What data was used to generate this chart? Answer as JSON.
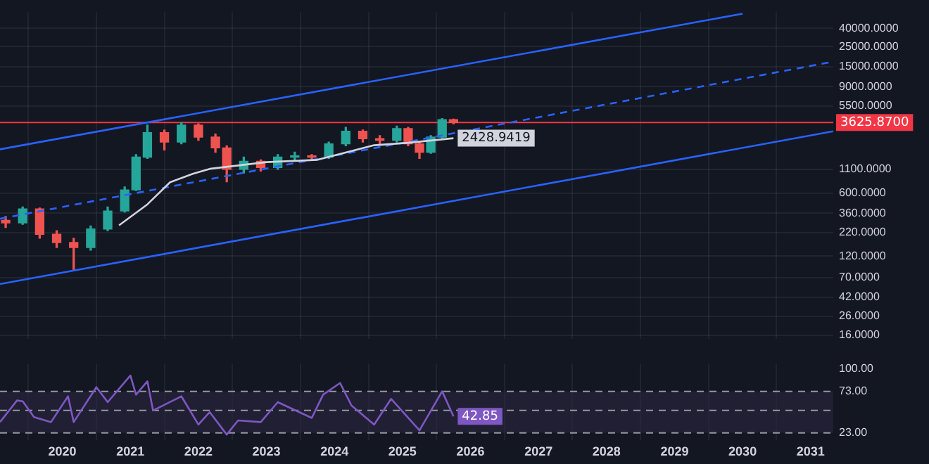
{
  "chart_data": [
    {
      "type": "candlestick",
      "log": true,
      "grid": true,
      "tick_labels": "y",
      "xlim": [
        "2019-02",
        "2031-05"
      ],
      "ylim": [
        14.5,
        60000
      ],
      "yticks": [
        {
          "value": 16,
          "label": "16.0000"
        },
        {
          "value": 26,
          "label": "26.0000"
        },
        {
          "value": 42,
          "label": "42.0000"
        },
        {
          "value": 70,
          "label": "70.0000"
        },
        {
          "value": 120,
          "label": "120.0000"
        },
        {
          "value": 220,
          "label": "220.0000"
        },
        {
          "value": 360,
          "label": "360.0000"
        },
        {
          "value": 600,
          "label": "600.0000"
        },
        {
          "value": 1100,
          "label": "1100.0000"
        },
        {
          "value": 5500,
          "label": "5500.0000"
        },
        {
          "value": 9000,
          "label": "9000.0000"
        },
        {
          "value": 15000,
          "label": "15000.0000"
        },
        {
          "value": 25000,
          "label": "25000.0000"
        },
        {
          "value": 40000,
          "label": "40000.0000"
        }
      ],
      "x": [
        "2019-03",
        "2019-06",
        "2019-09",
        "2019-12",
        "2020-03",
        "2020-06",
        "2020-09",
        "2020-12",
        "2021-02",
        "2021-04",
        "2021-07",
        "2021-10",
        "2022-01",
        "2022-04",
        "2022-06",
        "2022-09",
        "2022-12",
        "2023-03",
        "2023-06",
        "2023-09",
        "2023-12",
        "2024-03",
        "2024-06",
        "2024-09",
        "2024-12",
        "2025-02",
        "2025-04",
        "2025-06",
        "2025-08",
        "2025-10"
      ],
      "ohlc": [
        [
          300,
          330,
          250,
          280
        ],
        [
          280,
          420,
          270,
          400
        ],
        [
          400,
          410,
          190,
          210
        ],
        [
          210,
          230,
          150,
          170
        ],
        [
          170,
          190,
          85,
          150
        ],
        [
          150,
          260,
          140,
          240
        ],
        [
          240,
          420,
          230,
          380
        ],
        [
          380,
          700,
          370,
          650
        ],
        [
          650,
          1600,
          640,
          1500
        ],
        [
          1500,
          3400,
          1450,
          2800
        ],
        [
          2800,
          3000,
          1800,
          2200
        ],
        [
          2200,
          3600,
          2100,
          3400
        ],
        [
          3400,
          3500,
          2300,
          2500
        ],
        [
          2500,
          2700,
          1700,
          1900
        ],
        [
          1900,
          2000,
          800,
          1100
        ],
        [
          1100,
          1500,
          1000,
          1350
        ],
        [
          1350,
          1400,
          1050,
          1150
        ],
        [
          1150,
          1600,
          1100,
          1500
        ],
        [
          1500,
          1700,
          1350,
          1550
        ],
        [
          1550,
          1600,
          1400,
          1500
        ],
        [
          1500,
          2200,
          1450,
          2100
        ],
        [
          2100,
          3200,
          2000,
          2900
        ],
        [
          2900,
          3000,
          2200,
          2400
        ],
        [
          2400,
          2600,
          2100,
          2300
        ],
        [
          2300,
          3300,
          2200,
          3100
        ],
        [
          3100,
          3200,
          2000,
          2100
        ],
        [
          2100,
          2200,
          1450,
          1700
        ],
        [
          1700,
          2600,
          1650,
          2500
        ],
        [
          2500,
          4000,
          2450,
          3900
        ],
        [
          3900,
          3950,
          3500,
          3625.87
        ]
      ],
      "series": [
        {
          "type": "line",
          "color": "#d1d4dc",
          "x": [
            "2020-11",
            "2021-04",
            "2021-08",
            "2021-12",
            "2022-03",
            "2023-01",
            "2023-10",
            "2024-08",
            "2025-02",
            "2025-10"
          ],
          "values": [
            264,
            450,
            790,
            980,
            1113,
            1320,
            1400,
            2030,
            2160,
            2428.9419
          ]
        },
        {
          "type": "line",
          "color": "#2962ff",
          "line_style": "solid",
          "x": [
            "2019-02",
            "2030-01"
          ],
          "values": [
            1830,
            58000
          ]
        },
        {
          "type": "line",
          "color": "#2962ff",
          "line_style": "dashed",
          "x": [
            "2019-02",
            "2031-05"
          ],
          "values": [
            312,
            17100
          ]
        },
        {
          "type": "line",
          "color": "#2962ff",
          "line_style": "solid",
          "x": [
            "2019-02",
            "2031-05"
          ],
          "values": [
            59,
            2900
          ]
        }
      ],
      "ref_lines": [
        {
          "axis": "y",
          "value": 3625.87,
          "label": "3625.8700",
          "color": "#f23645"
        }
      ],
      "annotations": [
        {
          "text": "2428.9419",
          "x": "2025-10",
          "y": 2428.9419
        }
      ]
    },
    {
      "type": "line",
      "grid": "x",
      "xlim": [
        "2019-02",
        "2031-05"
      ],
      "ylim": [
        14,
        106
      ],
      "xticks": [
        {
          "value": "2020",
          "label": "2020"
        },
        {
          "value": "2021",
          "label": "2021"
        },
        {
          "value": "2022",
          "label": "2022"
        },
        {
          "value": "2023",
          "label": "2023"
        },
        {
          "value": "2024",
          "label": "2024"
        },
        {
          "value": "2025",
          "label": "2025"
        },
        {
          "value": "2026",
          "label": "2026"
        },
        {
          "value": "2027",
          "label": "2027"
        },
        {
          "value": "2028",
          "label": "2028"
        },
        {
          "value": "2029",
          "label": "2029"
        },
        {
          "value": "2030",
          "label": "2030"
        },
        {
          "value": "2031",
          "label": "2031"
        }
      ],
      "yticks": [
        {
          "value": 100,
          "label": "100.00"
        },
        {
          "value": 73,
          "label": "73.00"
        },
        {
          "value": 23,
          "label": "23.00"
        }
      ],
      "series": [
        {
          "color": "#7e57c2",
          "x": [
            "2019-02",
            "2019-05",
            "2019-06",
            "2019-08",
            "2019-11",
            "2020-02",
            "2020-03",
            "2020-07",
            "2020-09",
            "2021-01",
            "2021-02",
            "2021-04",
            "2021-05",
            "2021-10",
            "2022-01",
            "2022-03",
            "2022-06",
            "2022-08",
            "2022-12",
            "2023-03",
            "2023-09",
            "2023-11",
            "2024-02",
            "2024-04",
            "2024-08",
            "2024-11",
            "2025-04",
            "2025-08",
            "2025-10"
          ],
          "values": [
            36,
            62,
            61,
            42,
            36,
            67,
            36,
            78,
            60,
            92,
            69,
            85,
            50,
            67,
            33,
            48,
            21,
            38,
            36,
            60,
            41,
            69,
            83,
            56,
            33,
            64,
            26,
            73,
            42.85
          ]
        }
      ],
      "ref_lines": [
        {
          "axis": "y",
          "value": 73,
          "color": "#9598a1",
          "line_style": "dashed"
        },
        {
          "axis": "y",
          "value": 50,
          "color": "#9598a1",
          "line_style": "dashed"
        },
        {
          "axis": "y",
          "value": 23,
          "color": "#9598a1",
          "line_style": "dashed"
        }
      ],
      "bands": [
        {
          "axis": "y",
          "from": 23,
          "to": 73,
          "color": "#2a2440"
        }
      ],
      "annotations": [
        {
          "text": "42.85",
          "x": "2025-10",
          "y": 42.85
        }
      ]
    }
  ]
}
